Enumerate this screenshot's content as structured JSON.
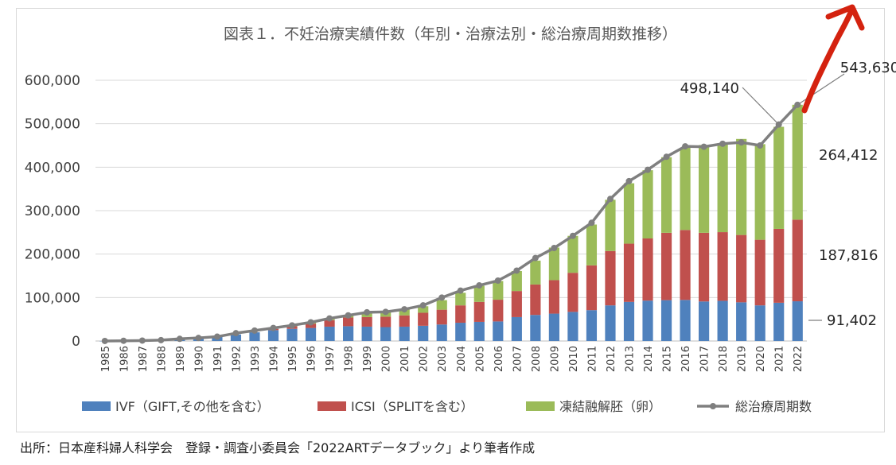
{
  "chart_data": {
    "type": "bar",
    "stacked": true,
    "title": "図表１．不妊治療実績件数（年別・治療法別・総治療周期数推移）",
    "categories": [
      "1985",
      "1986",
      "1987",
      "1988",
      "1989",
      "1990",
      "1991",
      "1992",
      "1993",
      "1994",
      "1995",
      "1996",
      "1997",
      "1998",
      "1999",
      "2000",
      "2001",
      "2002",
      "2003",
      "2004",
      "2005",
      "2006",
      "2007",
      "2008",
      "2009",
      "2010",
      "2011",
      "2012",
      "2013",
      "2014",
      "2015",
      "2016",
      "2017",
      "2018",
      "2019",
      "2020",
      "2021",
      "2022"
    ],
    "ylim": [
      0,
      600000
    ],
    "yticks": [
      "0",
      "100,000",
      "200,000",
      "300,000",
      "400,000",
      "500,000",
      "600,000"
    ],
    "grid": true,
    "legend_position": "bottom",
    "series": [
      {
        "name": "IVF（GIFT,その他を含む）",
        "color": "#4f81bd",
        "values": [
          100,
          500,
          1000,
          2000,
          5000,
          7000,
          10000,
          15000,
          20000,
          25000,
          28000,
          30000,
          33000,
          34000,
          33000,
          32000,
          33000,
          35000,
          38000,
          42000,
          44000,
          45000,
          55000,
          60000,
          63000,
          67000,
          71000,
          82000,
          90000,
          93000,
          94000,
          94500,
          91000,
          92500,
          89000,
          82000,
          88000,
          91402
        ]
      },
      {
        "name": "ICSI（SPLITを含む）",
        "color": "#c0504d",
        "values": [
          0,
          0,
          0,
          0,
          0,
          0,
          0,
          0,
          0,
          3000,
          6000,
          10000,
          15000,
          20000,
          22000,
          24000,
          26000,
          30000,
          34000,
          40000,
          46000,
          50000,
          60000,
          70000,
          77000,
          90000,
          103000,
          125000,
          134000,
          143000,
          155000,
          161000,
          158000,
          158000,
          155000,
          151000,
          170000,
          187816
        ]
      },
      {
        "name": "凍結融解胚（卵）",
        "color": "#9bbb59",
        "values": [
          0,
          0,
          0,
          0,
          0,
          0,
          0,
          0,
          0,
          0,
          1000,
          3000,
          4000,
          6000,
          10000,
          11000,
          14000,
          15000,
          22000,
          29000,
          37000,
          43000,
          46000,
          55000,
          75000,
          85000,
          94000,
          118000,
          139000,
          157000,
          174000,
          189000,
          202000,
          205000,
          221000,
          220000,
          235000,
          264412
        ]
      },
      {
        "name": "総治療周期数",
        "type": "line",
        "color": "#7f7f7f",
        "values": [
          100,
          500,
          1000,
          2000,
          5000,
          7000,
          10000,
          18000,
          24000,
          30000,
          36000,
          43000,
          52000,
          59000,
          66000,
          67000,
          73000,
          82000,
          100000,
          116000,
          128000,
          139000,
          162000,
          191000,
          214000,
          242000,
          272000,
          327000,
          368000,
          394000,
          424000,
          448000,
          447000,
          454000,
          457000,
          450000,
          498140,
          543630
        ]
      }
    ],
    "annotations": [
      {
        "text": "498,140",
        "year": "2021",
        "value": 498140
      },
      {
        "text": "543,630",
        "year": "2022",
        "value": 543630
      },
      {
        "text": "264,412",
        "year": "2022",
        "series": "凍結融解胚（卵）"
      },
      {
        "text": "187,816",
        "year": "2022",
        "series": "ICSI（SPLITを含む）"
      },
      {
        "text": "91,402",
        "year": "2022",
        "series": "IVF（GIFT,その他を含む）"
      }
    ]
  },
  "source": "出所：日本産科婦人科学会　登録・調査小委員会「2022ARTデータブック」より筆者作成"
}
